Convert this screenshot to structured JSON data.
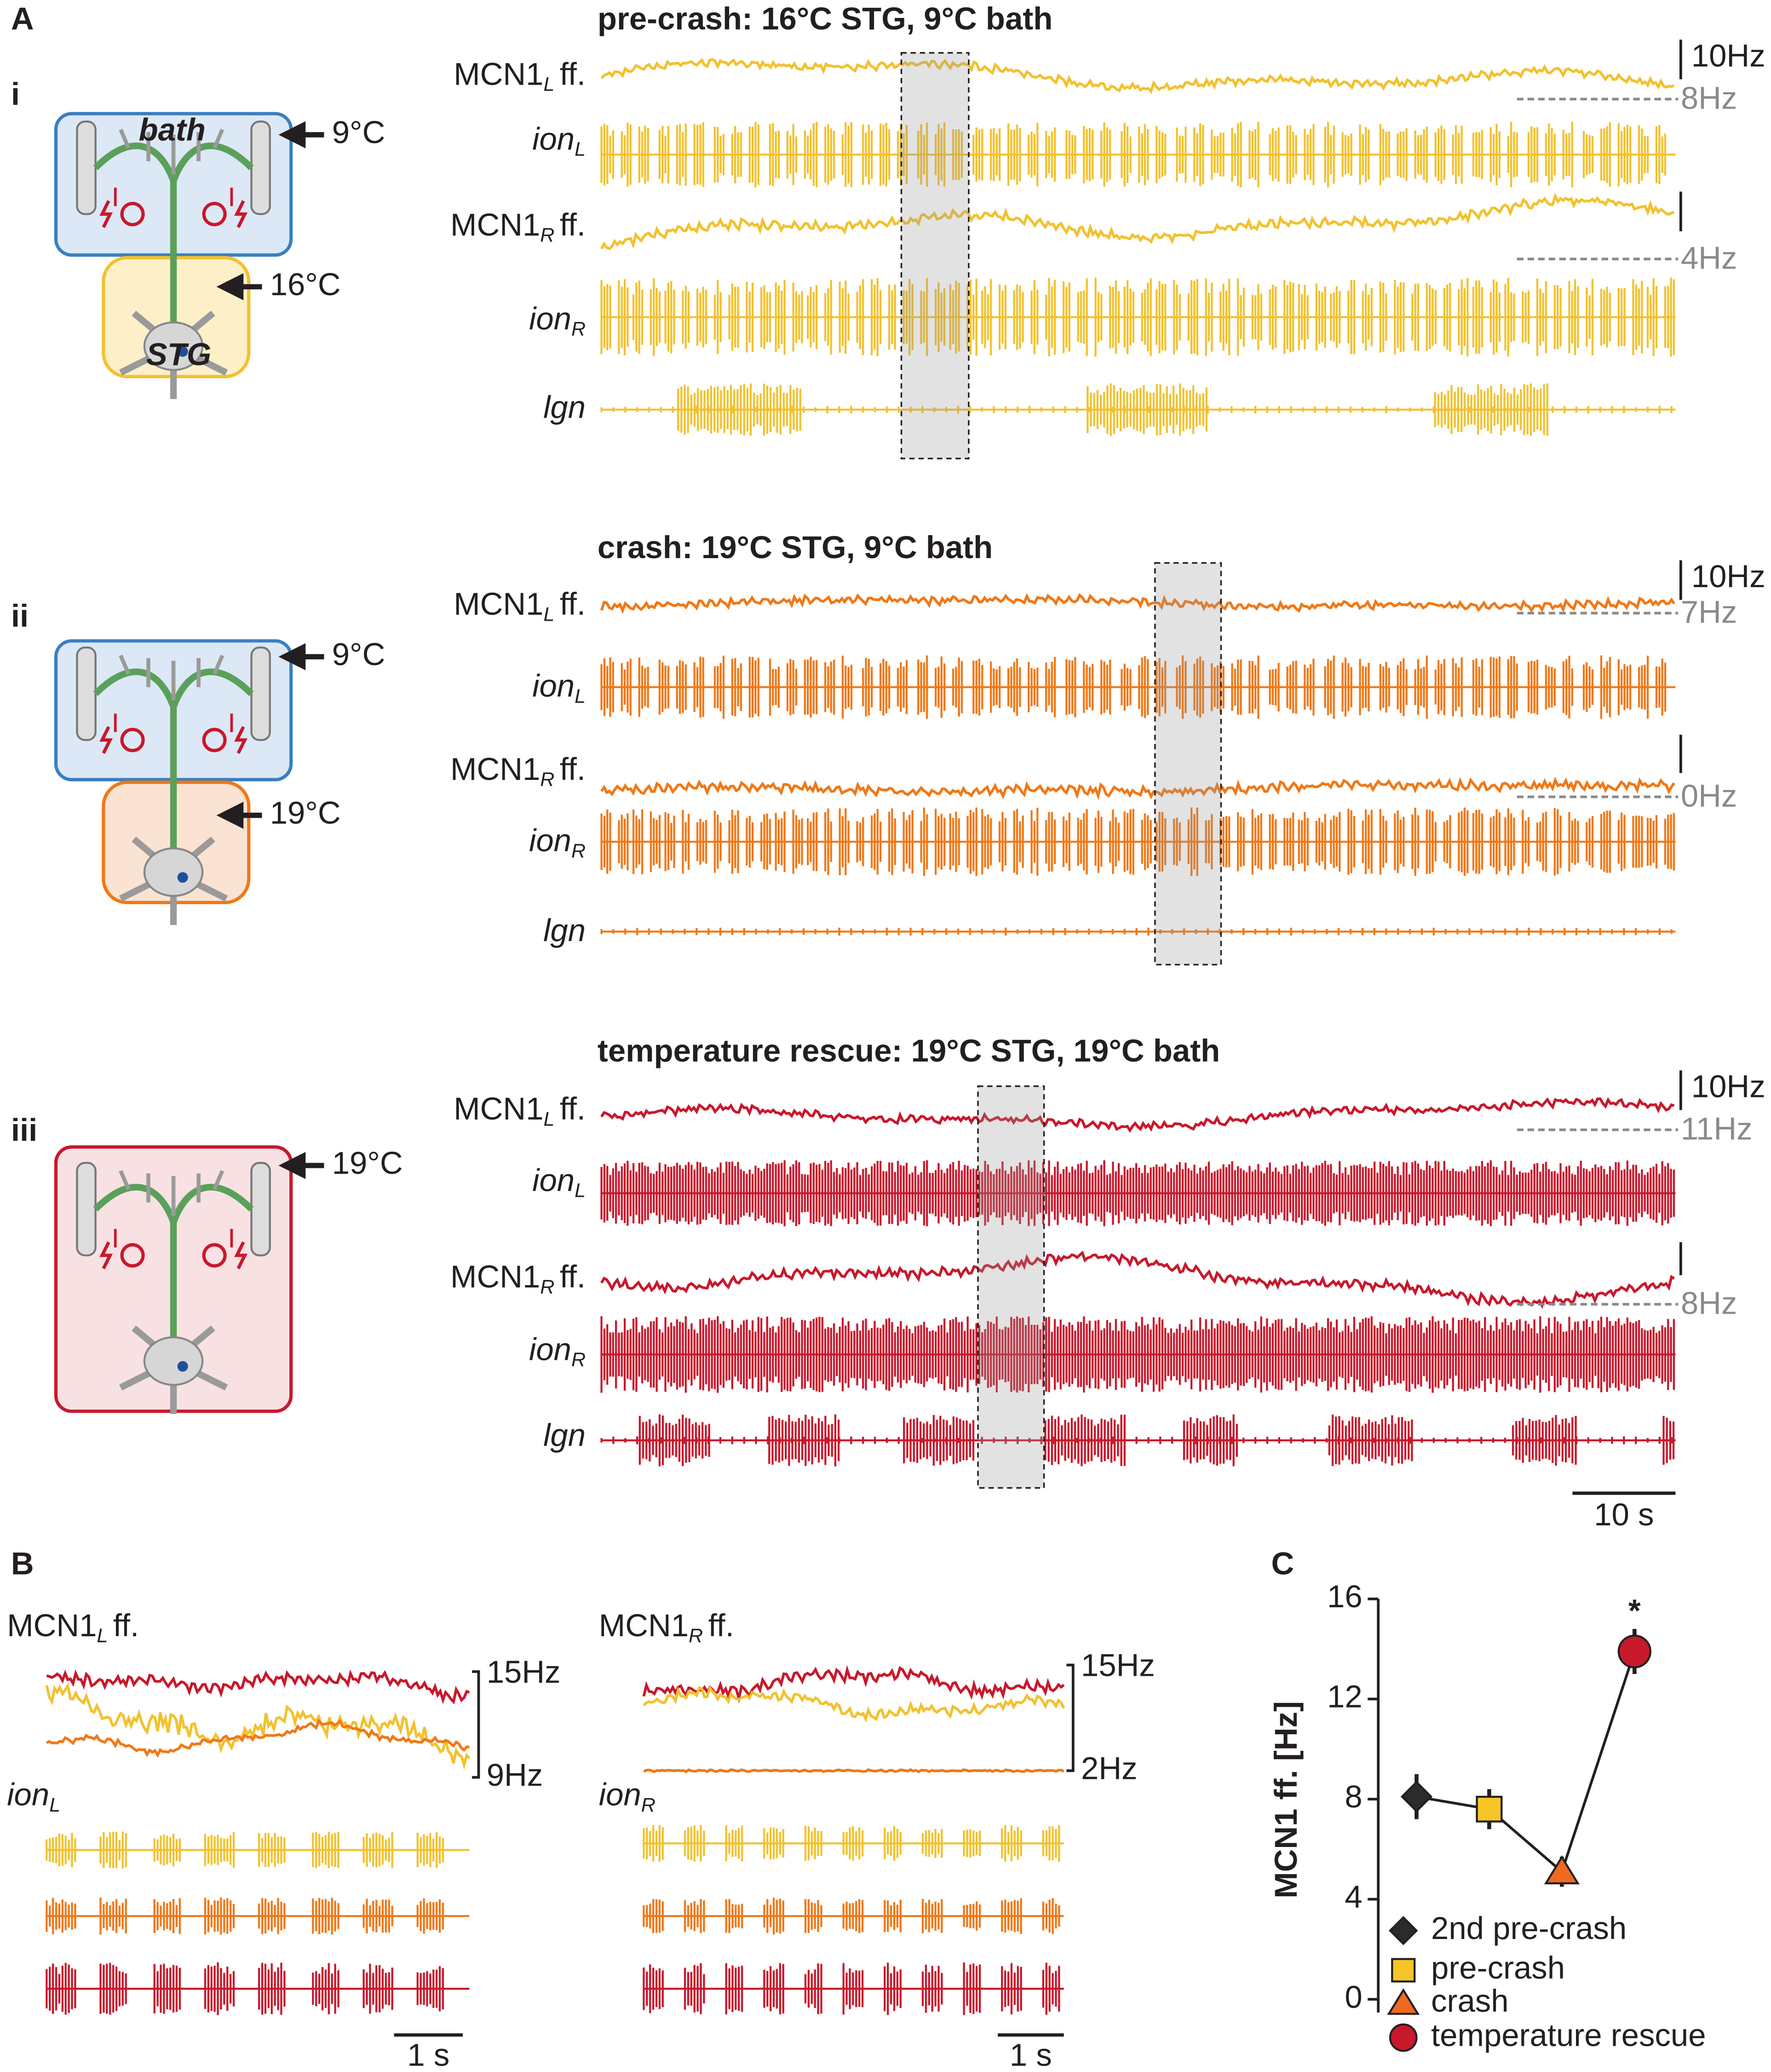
{
  "figure": {
    "panel_a": {
      "label": "A",
      "time_scale": "10 s",
      "trace_labels": [
        {
          "main": "MCN1",
          "sub": "L",
          "suffix": "ff."
        },
        {
          "main": "ion",
          "sub": "L"
        },
        {
          "main": "MCN1",
          "sub": "R",
          "suffix": "ff."
        },
        {
          "main": "ion",
          "sub": "R"
        },
        {
          "main": "lgn"
        }
      ],
      "rows": [
        {
          "label": "i",
          "title": "pre-crash: 16°C STG, 9°C bath",
          "bath_label": "bath",
          "stg_label": "STG",
          "temps": [
            "9°C",
            "16°C"
          ],
          "ff_scale": "10Hz",
          "baseline_l": "8Hz",
          "baseline_r": "4Hz"
        },
        {
          "label": "ii",
          "title": "crash: 19°C STG, 9°C bath",
          "temps": [
            "9°C",
            "19°C"
          ],
          "ff_scale": "10Hz",
          "baseline_l": "7Hz",
          "baseline_r": "0Hz"
        },
        {
          "label": "iii",
          "title": "temperature rescue: 19°C STG, 19°C bath",
          "temps": [
            "19°C"
          ],
          "ff_scale": "10Hz",
          "baseline_l": "11Hz",
          "baseline_r": "8Hz"
        }
      ]
    },
    "panel_b": {
      "label": "B",
      "left": {
        "ff_label": {
          "main": "MCN1",
          "sub": "L",
          "suffix": "ff."
        },
        "ion_label": {
          "main": "ion",
          "sub": "L"
        },
        "scale_top": "15Hz",
        "scale_bottom": "9Hz",
        "time_scale": "1 s"
      },
      "right": {
        "ff_label": {
          "main": "MCN1",
          "sub": "R",
          "suffix": "ff."
        },
        "ion_label": {
          "main": "ion",
          "sub": "R"
        },
        "scale_top": "15Hz",
        "scale_bottom": "2Hz",
        "time_scale": "1 s"
      }
    }
  },
  "chart_data": {
    "type": "line",
    "panel_label": "C",
    "ylabel": "MCN1 ff. [Hz]",
    "categories": [
      "2nd pre-crash",
      "pre-crash",
      "crash",
      "temperature rescue"
    ],
    "values": [
      8.1,
      7.6,
      5.1,
      13.9
    ],
    "errors": [
      0.9,
      0.8,
      0.6,
      0.9
    ],
    "colors": [
      "#2b2b2b",
      "#f6c627",
      "#f06a20",
      "#c8182c"
    ],
    "markers": [
      "diamond",
      "square",
      "triangle",
      "circle"
    ],
    "ylim": [
      0,
      16
    ],
    "yticks": [
      0,
      4,
      8,
      12,
      16
    ],
    "annotation": "*"
  }
}
